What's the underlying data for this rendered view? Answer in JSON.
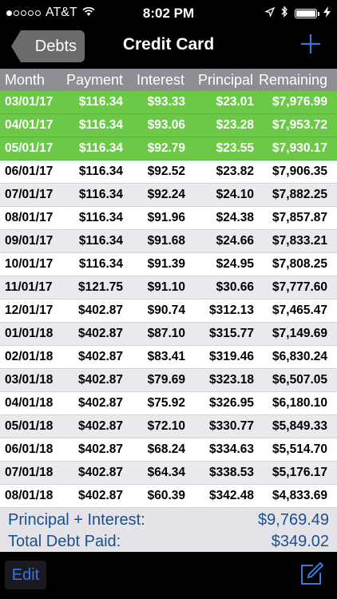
{
  "status": {
    "carrier": "AT&T",
    "time": "8:02 PM",
    "signal_dots": [
      true,
      false,
      false,
      false,
      false
    ]
  },
  "nav": {
    "back_label": "Debts",
    "title": "Credit Card",
    "add_icon": "plus-icon"
  },
  "table": {
    "headers": [
      "Month",
      "Payment",
      "Interest",
      "Principal",
      "Remaining"
    ],
    "rows": [
      {
        "month": "03/01/17",
        "payment": "$116.34",
        "interest": "$93.33",
        "principal": "$23.01",
        "remaining": "$7,976.99",
        "paid": true
      },
      {
        "month": "04/01/17",
        "payment": "$116.34",
        "interest": "$93.06",
        "principal": "$23.28",
        "remaining": "$7,953.72",
        "paid": true
      },
      {
        "month": "05/01/17",
        "payment": "$116.34",
        "interest": "$92.79",
        "principal": "$23.55",
        "remaining": "$7,930.17",
        "paid": true
      },
      {
        "month": "06/01/17",
        "payment": "$116.34",
        "interest": "$92.52",
        "principal": "$23.82",
        "remaining": "$7,906.35",
        "paid": false
      },
      {
        "month": "07/01/17",
        "payment": "$116.34",
        "interest": "$92.24",
        "principal": "$24.10",
        "remaining": "$7,882.25",
        "paid": false
      },
      {
        "month": "08/01/17",
        "payment": "$116.34",
        "interest": "$91.96",
        "principal": "$24.38",
        "remaining": "$7,857.87",
        "paid": false
      },
      {
        "month": "09/01/17",
        "payment": "$116.34",
        "interest": "$91.68",
        "principal": "$24.66",
        "remaining": "$7,833.21",
        "paid": false
      },
      {
        "month": "10/01/17",
        "payment": "$116.34",
        "interest": "$91.39",
        "principal": "$24.95",
        "remaining": "$7,808.25",
        "paid": false
      },
      {
        "month": "11/01/17",
        "payment": "$121.75",
        "interest": "$91.10",
        "principal": "$30.66",
        "remaining": "$7,777.60",
        "paid": false
      },
      {
        "month": "12/01/17",
        "payment": "$402.87",
        "interest": "$90.74",
        "principal": "$312.13",
        "remaining": "$7,465.47",
        "paid": false
      },
      {
        "month": "01/01/18",
        "payment": "$402.87",
        "interest": "$87.10",
        "principal": "$315.77",
        "remaining": "$7,149.69",
        "paid": false
      },
      {
        "month": "02/01/18",
        "payment": "$402.87",
        "interest": "$83.41",
        "principal": "$319.46",
        "remaining": "$6,830.24",
        "paid": false
      },
      {
        "month": "03/01/18",
        "payment": "$402.87",
        "interest": "$79.69",
        "principal": "$323.18",
        "remaining": "$6,507.05",
        "paid": false
      },
      {
        "month": "04/01/18",
        "payment": "$402.87",
        "interest": "$75.92",
        "principal": "$326.95",
        "remaining": "$6,180.10",
        "paid": false
      },
      {
        "month": "05/01/18",
        "payment": "$402.87",
        "interest": "$72.10",
        "principal": "$330.77",
        "remaining": "$5,849.33",
        "paid": false
      },
      {
        "month": "06/01/18",
        "payment": "$402.87",
        "interest": "$68.24",
        "principal": "$334.63",
        "remaining": "$5,514.70",
        "paid": false
      },
      {
        "month": "07/01/18",
        "payment": "$402.87",
        "interest": "$64.34",
        "principal": "$338.53",
        "remaining": "$5,176.17",
        "paid": false
      },
      {
        "month": "08/01/18",
        "payment": "$402.87",
        "interest": "$60.39",
        "principal": "$342.48",
        "remaining": "$4,833.69",
        "paid": false
      }
    ]
  },
  "summary": {
    "principal_interest_label": "Principal + Interest:",
    "principal_interest_value": "$9,769.49",
    "total_paid_label": "Total Debt Paid:",
    "total_paid_value": "$349.02"
  },
  "toolbar": {
    "edit_label": "Edit",
    "compose_icon": "compose-icon"
  },
  "colors": {
    "paid_row": "#6cc947",
    "accent": "#3a78d8",
    "header_bg": "#8d8d93",
    "summary_text": "#1e4f8c"
  }
}
